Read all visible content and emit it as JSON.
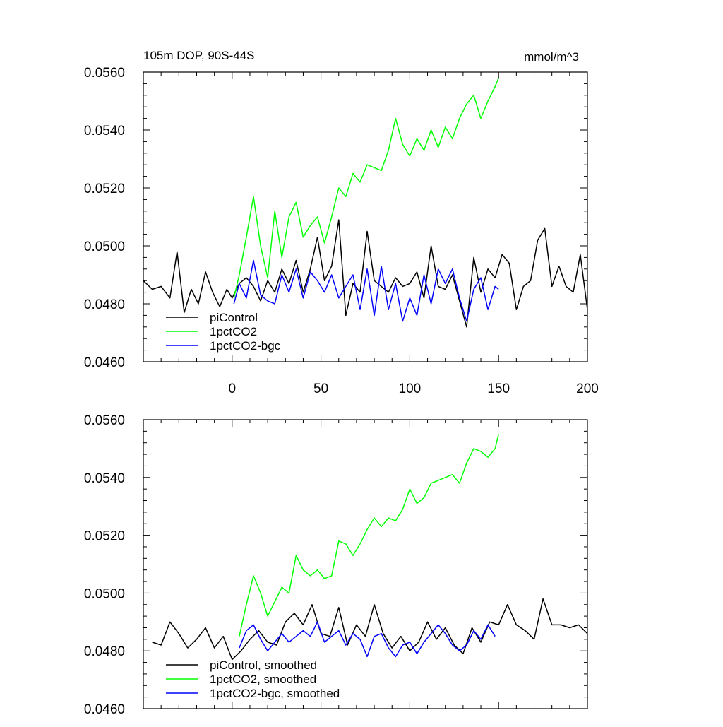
{
  "chart_data": [
    {
      "type": "line",
      "title": "105m DOP, 90S-44S",
      "units": "mmol/m^3",
      "xlim": [
        -50,
        200
      ],
      "ylim": [
        0.046,
        0.056
      ],
      "xticks": [
        0,
        50,
        100,
        150,
        200
      ],
      "yticks": [
        "0.0460",
        "0.0480",
        "0.0500",
        "0.0520",
        "0.0540",
        "0.0560"
      ],
      "legend_position": "bottom-left",
      "series": [
        {
          "name": "piControl",
          "color": "#000000",
          "x": [
            -50,
            -45,
            -40,
            -35,
            -31,
            -27,
            -23,
            -19,
            -15,
            -11,
            -7,
            -3,
            0,
            4,
            8,
            12,
            16,
            20,
            24,
            28,
            32,
            36,
            40,
            44,
            48,
            52,
            56,
            60,
            64,
            68,
            72,
            76,
            80,
            84,
            88,
            92,
            96,
            100,
            104,
            108,
            112,
            116,
            120,
            124,
            128,
            132,
            136,
            140,
            144,
            148,
            152,
            156,
            160,
            164,
            168,
            172,
            176,
            180,
            184,
            188,
            192,
            196,
            200
          ],
          "y": [
            0.0488,
            0.0485,
            0.0486,
            0.0482,
            0.0498,
            0.0477,
            0.0485,
            0.048,
            0.0491,
            0.0484,
            0.0479,
            0.0485,
            0.0482,
            0.0487,
            0.0489,
            0.0486,
            0.0481,
            0.0488,
            0.0484,
            0.0492,
            0.0487,
            0.0495,
            0.0484,
            0.0492,
            0.0503,
            0.0488,
            0.0493,
            0.0509,
            0.0476,
            0.0487,
            0.0484,
            0.0505,
            0.0488,
            0.0486,
            0.0484,
            0.0489,
            0.0486,
            0.0487,
            0.0491,
            0.0482,
            0.05,
            0.0486,
            0.0485,
            0.049,
            0.0481,
            0.0472,
            0.0496,
            0.0484,
            0.0492,
            0.0489,
            0.0497,
            0.0494,
            0.0478,
            0.0486,
            0.0488,
            0.0502,
            0.0506,
            0.0486,
            0.0493,
            0.0486,
            0.0484,
            0.0497,
            0.0478
          ]
        },
        {
          "name": "1pctCO2",
          "color": "#00ff00",
          "x": [
            1,
            4,
            8,
            12,
            16,
            20,
            24,
            28,
            32,
            36,
            40,
            44,
            48,
            52,
            56,
            60,
            64,
            68,
            72,
            76,
            80,
            84,
            88,
            92,
            96,
            100,
            104,
            108,
            112,
            116,
            120,
            124,
            128,
            132,
            136,
            140,
            144,
            148,
            150
          ],
          "y": [
            0.0482,
            0.049,
            0.0503,
            0.0517,
            0.05,
            0.0489,
            0.0512,
            0.0496,
            0.051,
            0.0515,
            0.0503,
            0.0507,
            0.051,
            0.0501,
            0.051,
            0.052,
            0.0517,
            0.0525,
            0.0522,
            0.0528,
            0.0527,
            0.0526,
            0.0533,
            0.0544,
            0.0535,
            0.0531,
            0.0537,
            0.0533,
            0.054,
            0.0534,
            0.0541,
            0.0537,
            0.0544,
            0.0549,
            0.0552,
            0.0544,
            0.055,
            0.0555,
            0.0558
          ]
        },
        {
          "name": "1pctCO2-bgc",
          "color": "#0000ff",
          "x": [
            1,
            4,
            8,
            12,
            16,
            20,
            24,
            28,
            32,
            36,
            40,
            44,
            48,
            52,
            56,
            60,
            64,
            68,
            72,
            76,
            80,
            84,
            88,
            92,
            96,
            100,
            104,
            108,
            112,
            116,
            120,
            124,
            128,
            132,
            136,
            140,
            144,
            148,
            150
          ],
          "y": [
            0.048,
            0.0487,
            0.0482,
            0.0495,
            0.0483,
            0.0481,
            0.048,
            0.049,
            0.0484,
            0.0492,
            0.0482,
            0.0491,
            0.0488,
            0.0484,
            0.049,
            0.0482,
            0.0486,
            0.049,
            0.0478,
            0.0492,
            0.0476,
            0.0493,
            0.0478,
            0.0487,
            0.0474,
            0.0482,
            0.0476,
            0.049,
            0.048,
            0.0492,
            0.0487,
            0.0492,
            0.0482,
            0.0474,
            0.0485,
            0.0489,
            0.0478,
            0.0486,
            0.0485
          ]
        }
      ]
    },
    {
      "type": "line",
      "xlim": [
        -50,
        200
      ],
      "ylim": [
        0.046,
        0.056
      ],
      "yticks": [
        "0.0460",
        "0.0480",
        "0.0500",
        "0.0520",
        "0.0540",
        "0.0560"
      ],
      "legend_position": "bottom-left",
      "series": [
        {
          "name": "piControl, smoothed",
          "color": "#000000",
          "x": [
            -45,
            -40,
            -35,
            -30,
            -25,
            -20,
            -15,
            -10,
            -5,
            0,
            5,
            10,
            15,
            20,
            25,
            30,
            35,
            40,
            45,
            50,
            55,
            60,
            65,
            70,
            75,
            80,
            85,
            90,
            95,
            100,
            105,
            110,
            115,
            120,
            125,
            130,
            135,
            140,
            145,
            150,
            155,
            160,
            165,
            170,
            175,
            180,
            185,
            190,
            195,
            200
          ],
          "y": [
            0.0483,
            0.0482,
            0.049,
            0.0486,
            0.0481,
            0.0484,
            0.0488,
            0.0481,
            0.0485,
            0.0477,
            0.048,
            0.0484,
            0.0487,
            0.0483,
            0.0482,
            0.049,
            0.0493,
            0.0489,
            0.0496,
            0.0486,
            0.0485,
            0.0495,
            0.0482,
            0.0489,
            0.0485,
            0.0496,
            0.0486,
            0.0481,
            0.0485,
            0.048,
            0.0483,
            0.049,
            0.0484,
            0.0488,
            0.0482,
            0.0479,
            0.0488,
            0.0483,
            0.049,
            0.0489,
            0.0496,
            0.0489,
            0.0487,
            0.0484,
            0.0498,
            0.0489,
            0.0489,
            0.0488,
            0.0489,
            0.0486
          ]
        },
        {
          "name": "1pctCO2, smoothed",
          "color": "#00ff00",
          "x": [
            4,
            8,
            12,
            16,
            20,
            24,
            28,
            32,
            36,
            40,
            44,
            48,
            52,
            56,
            60,
            64,
            68,
            72,
            76,
            80,
            84,
            88,
            92,
            96,
            100,
            104,
            108,
            112,
            116,
            120,
            124,
            128,
            132,
            136,
            140,
            144,
            148,
            150
          ],
          "y": [
            0.0485,
            0.0496,
            0.0506,
            0.05,
            0.0492,
            0.0497,
            0.0502,
            0.05,
            0.0513,
            0.0508,
            0.0506,
            0.0508,
            0.0505,
            0.0506,
            0.0518,
            0.0517,
            0.0513,
            0.0517,
            0.0522,
            0.0526,
            0.0523,
            0.0526,
            0.0525,
            0.0529,
            0.0536,
            0.0531,
            0.0533,
            0.0538,
            0.0539,
            0.054,
            0.0541,
            0.0538,
            0.0545,
            0.055,
            0.0549,
            0.0547,
            0.055,
            0.0555
          ]
        },
        {
          "name": "1pctCO2-bgc, smoothed",
          "color": "#0000ff",
          "x": [
            4,
            8,
            12,
            16,
            20,
            24,
            28,
            32,
            36,
            40,
            44,
            48,
            52,
            56,
            60,
            64,
            68,
            72,
            76,
            80,
            84,
            88,
            92,
            96,
            100,
            104,
            108,
            112,
            116,
            120,
            124,
            128,
            132,
            136,
            140,
            144,
            148
          ],
          "y": [
            0.0481,
            0.0487,
            0.0489,
            0.0484,
            0.048,
            0.0483,
            0.0486,
            0.0483,
            0.0485,
            0.0487,
            0.0485,
            0.049,
            0.0483,
            0.0485,
            0.0487,
            0.0482,
            0.0486,
            0.0484,
            0.0478,
            0.0485,
            0.0486,
            0.0481,
            0.0478,
            0.0482,
            0.0483,
            0.0479,
            0.0483,
            0.0486,
            0.0489,
            0.0486,
            0.0482,
            0.048,
            0.0482,
            0.0487,
            0.0484,
            0.0489,
            0.0485
          ]
        }
      ]
    }
  ]
}
